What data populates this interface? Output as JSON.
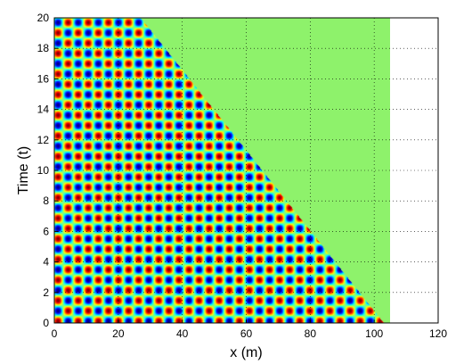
{
  "chart_data": {
    "type": "heatmap",
    "title": "",
    "xlabel": "x (m)",
    "ylabel": "Time (t)",
    "xlim": [
      0,
      120
    ],
    "ylim": [
      0,
      20
    ],
    "xticks": [
      0,
      20,
      40,
      60,
      80,
      100,
      120
    ],
    "yticks": [
      0,
      2,
      4,
      6,
      8,
      10,
      12,
      14,
      16,
      18,
      20
    ],
    "grid": "dotted",
    "colormap": "jet",
    "background_region_color": "#8ef26b",
    "field": {
      "x_range": [
        0,
        105
      ],
      "wavelength_x": 6.3,
      "period_t": 1.35,
      "boundary": [
        [
          27,
          20
        ],
        [
          103,
          0
        ]
      ]
    }
  }
}
